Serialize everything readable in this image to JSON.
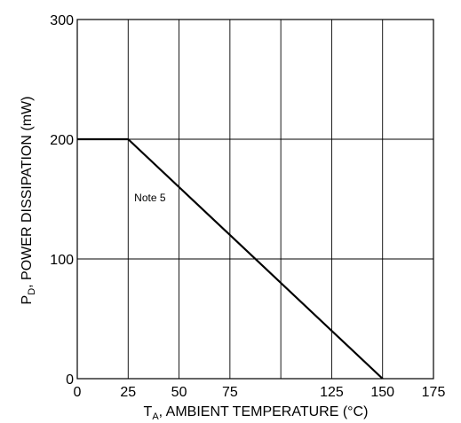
{
  "chart_data": {
    "type": "line",
    "xlabel_main": "T",
    "xlabel_sub": "A",
    "xlabel_rest": ", AMBIENT TEMPERATURE (°C)",
    "ylabel_main": "P",
    "ylabel_sub": "D",
    "ylabel_rest": ", POWER DISSIPATION (mW)",
    "xlim": [
      0,
      175
    ],
    "ylim": [
      0,
      300
    ],
    "x_ticks": [
      0,
      25,
      50,
      75,
      125,
      150,
      175
    ],
    "x_gridlines": [
      0,
      25,
      50,
      75,
      100,
      125,
      150,
      175
    ],
    "y_ticks": [
      0,
      100,
      200,
      300
    ],
    "grid": true,
    "series": [
      {
        "x": [
          0,
          25,
          150
        ],
        "y": [
          200,
          200,
          0
        ]
      }
    ],
    "annotations": [
      {
        "text": "Note 5",
        "x": 28,
        "y": 148
      }
    ],
    "colors": {
      "line": "#000000",
      "grid": "#000000"
    }
  }
}
